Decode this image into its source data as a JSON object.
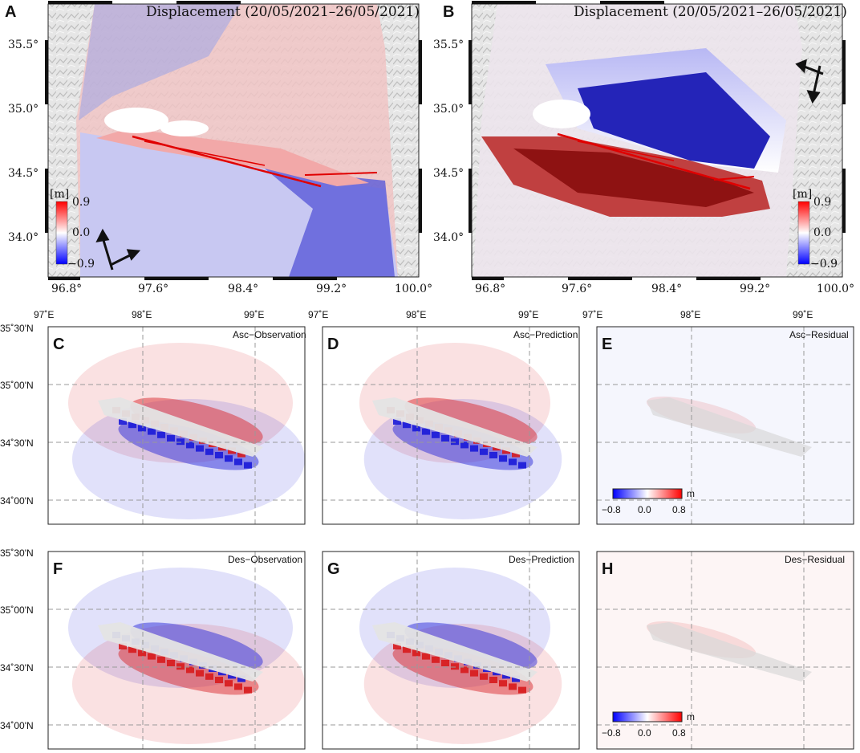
{
  "top": {
    "panels": [
      {
        "label": "A",
        "title": "Displacement (20/05/2021–26/05/2021)",
        "colorbar": {
          "unit": "[m]",
          "max": "0.9",
          "mid": "0.0",
          "min": "−0.9"
        }
      },
      {
        "label": "B",
        "title": "Displacement (20/05/2021–26/05/2021)",
        "colorbar": {
          "unit": "[m]",
          "max": "0.9",
          "mid": "0.0",
          "min": "−0.9"
        }
      }
    ],
    "lat_ticks": [
      "35.5°",
      "35.0°",
      "34.5°",
      "34.0°"
    ],
    "lon_ticks": [
      "96.8°",
      "97.6°",
      "98.4°",
      "99.2°",
      "100.0°"
    ]
  },
  "grid": {
    "lon_ticks": [
      "97˚E",
      "98˚E",
      "99˚E"
    ],
    "lat_ticks": [
      "35˚30'N",
      "35˚00'N",
      "34˚30'N",
      "34˚00'N"
    ],
    "panels": [
      {
        "label": "C",
        "title": "Asc−Observation"
      },
      {
        "label": "D",
        "title": "Asc−Prediction"
      },
      {
        "label": "E",
        "title": "Asc−Residual",
        "scale": {
          "unit": "m",
          "min": "−0.8",
          "mid": "0.0",
          "max": "0.8"
        }
      },
      {
        "label": "F",
        "title": "Des−Observation"
      },
      {
        "label": "G",
        "title": "Des−Prediction"
      },
      {
        "label": "H",
        "title": "Des−Residual",
        "scale": {
          "unit": "m",
          "min": "−0.8",
          "mid": "0.0",
          "max": "0.8"
        }
      }
    ]
  },
  "colors": {
    "red": "#d7191c",
    "blue": "#1a1ad8",
    "fault": "#e00000"
  }
}
